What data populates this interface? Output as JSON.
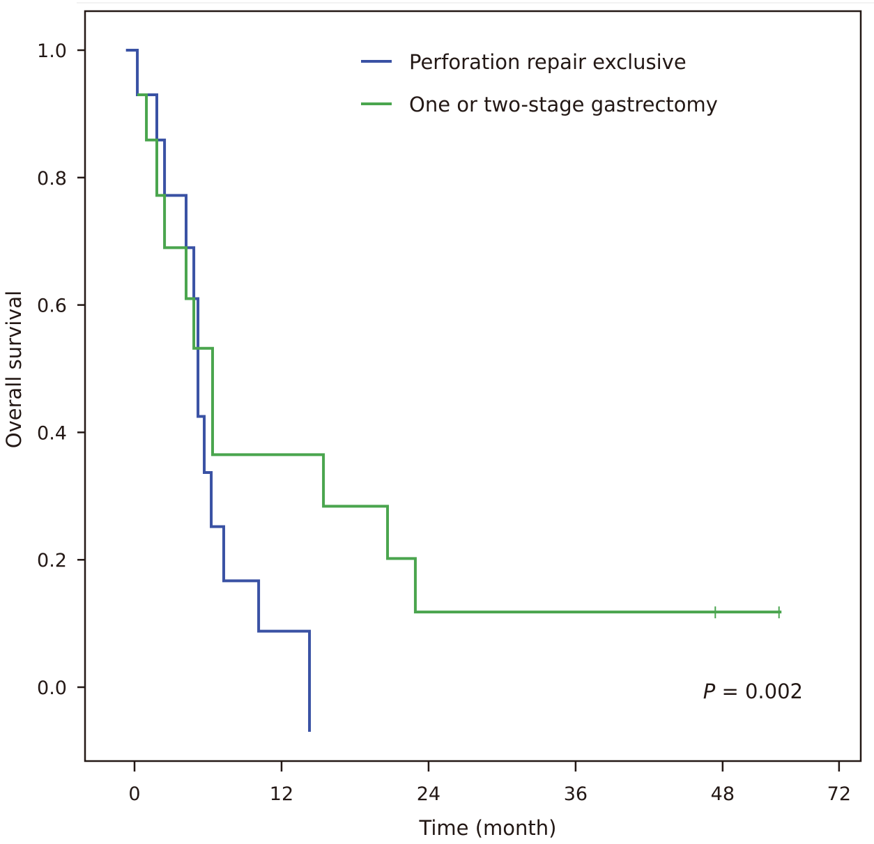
{
  "chart_data": {
    "type": "line",
    "subtype": "kaplan-meier-step",
    "title": "",
    "xlabel": "Time (month)",
    "ylabel": "Overall survival",
    "x_ticks": [
      {
        "value": 0,
        "label": "0"
      },
      {
        "value": 12,
        "label": "12"
      },
      {
        "value": 24,
        "label": "24"
      },
      {
        "value": 36,
        "label": "36"
      },
      {
        "value": 48,
        "label": "48"
      },
      {
        "value": 57.5,
        "label": "72"
      }
    ],
    "y_ticks": [
      {
        "value": 0.0,
        "label": "0.0"
      },
      {
        "value": 0.2,
        "label": "0.2"
      },
      {
        "value": 0.4,
        "label": "0.4"
      },
      {
        "value": 0.6,
        "label": "0.6"
      },
      {
        "value": 0.8,
        "label": "0.8"
      },
      {
        "value": 1.0,
        "label": "1.0"
      }
    ],
    "xlim": [
      -4.0,
      59.4
    ],
    "ylim": [
      -0.115,
      1.06
    ],
    "grid": false,
    "legend_position": "top-right",
    "series": [
      {
        "name": "Perforation repair exclusive",
        "color": "#3a52a4",
        "steps": [
          {
            "x": -0.7,
            "y": 1.0
          },
          {
            "x": 0.23,
            "y": 0.93
          },
          {
            "x": 0.97,
            "y": 0.93
          },
          {
            "x": 0.97,
            "y": 0.93
          },
          {
            "x": 1.82,
            "y": 0.859
          },
          {
            "x": 2.45,
            "y": 0.772
          },
          {
            "x": 4.21,
            "y": 0.69
          },
          {
            "x": 4.84,
            "y": 0.61
          },
          {
            "x": 5.18,
            "y": 0.425
          },
          {
            "x": 5.69,
            "y": 0.337
          },
          {
            "x": 6.26,
            "y": 0.252
          },
          {
            "x": 7.28,
            "y": 0.167
          },
          {
            "x": 10.13,
            "y": 0.088
          },
          {
            "x": 14.28,
            "y": 0.012
          }
        ],
        "end": {
          "x": 14.28,
          "y": -0.07
        },
        "censored": []
      },
      {
        "name": "One or two-stage gastrectomy",
        "color": "#4aa54e",
        "steps": [
          {
            "x": 0.23,
            "y": 0.93
          },
          {
            "x": 0.97,
            "y": 0.859
          },
          {
            "x": 1.82,
            "y": 0.772
          },
          {
            "x": 2.45,
            "y": 0.69
          },
          {
            "x": 4.21,
            "y": 0.61
          },
          {
            "x": 4.84,
            "y": 0.532
          },
          {
            "x": 6.37,
            "y": 0.365
          },
          {
            "x": 15.42,
            "y": 0.284
          },
          {
            "x": 20.65,
            "y": 0.202
          },
          {
            "x": 22.92,
            "y": 0.118
          }
        ],
        "end": {
          "x": 52.8,
          "y": 0.118
        },
        "censored": [
          {
            "x": 47.4,
            "y": 0.118
          },
          {
            "x": 52.6,
            "y": 0.118
          }
        ]
      }
    ],
    "annotations": [
      {
        "prefix": "P",
        "text": " = 0.002"
      }
    ]
  },
  "legend": [
    {
      "label": "Perforation repair exclusive",
      "color": "#3a52a4"
    },
    {
      "label": "One or two-stage gastrectomy",
      "color": "#4aa54e"
    }
  ],
  "p_value": {
    "prefix": "P",
    "text": " = 0.002"
  }
}
